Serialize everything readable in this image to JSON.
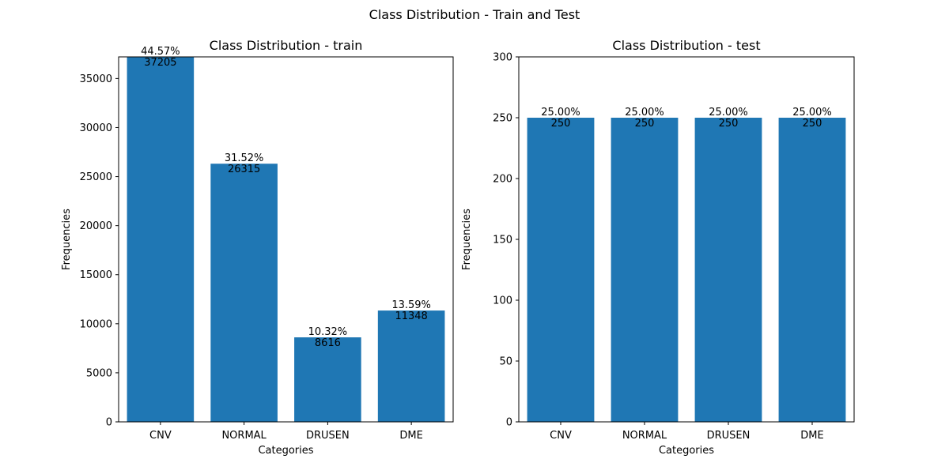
{
  "figure": {
    "title": "Class Distribution - Train and Test"
  },
  "chart_data": [
    {
      "type": "bar",
      "title": "Class Distribution - train",
      "xlabel": "Categories",
      "ylabel": "Frequencies",
      "categories": [
        "CNV",
        "NORMAL",
        "DRUSEN",
        "DME"
      ],
      "values": [
        37205,
        26315,
        8616,
        11348
      ],
      "value_labels": [
        "37205",
        "26315",
        "8616",
        "11348"
      ],
      "percent_labels": [
        "44.57%",
        "31.52%",
        "10.32%",
        "13.59%"
      ],
      "ylim": [
        0,
        37205
      ],
      "yticks": [
        0,
        5000,
        10000,
        15000,
        20000,
        25000,
        30000,
        35000
      ],
      "grid": false,
      "bar_color": "#1f77b4"
    },
    {
      "type": "bar",
      "title": "Class Distribution - test",
      "xlabel": "Categories",
      "ylabel": "Frequencies",
      "categories": [
        "CNV",
        "NORMAL",
        "DRUSEN",
        "DME"
      ],
      "values": [
        250,
        250,
        250,
        250
      ],
      "value_labels": [
        "250",
        "250",
        "250",
        "250"
      ],
      "percent_labels": [
        "25.00%",
        "25.00%",
        "25.00%",
        "25.00%"
      ],
      "ylim": [
        0,
        300
      ],
      "yticks": [
        0,
        50,
        100,
        150,
        200,
        250,
        300
      ],
      "grid": false,
      "bar_color": "#1f77b4"
    }
  ]
}
